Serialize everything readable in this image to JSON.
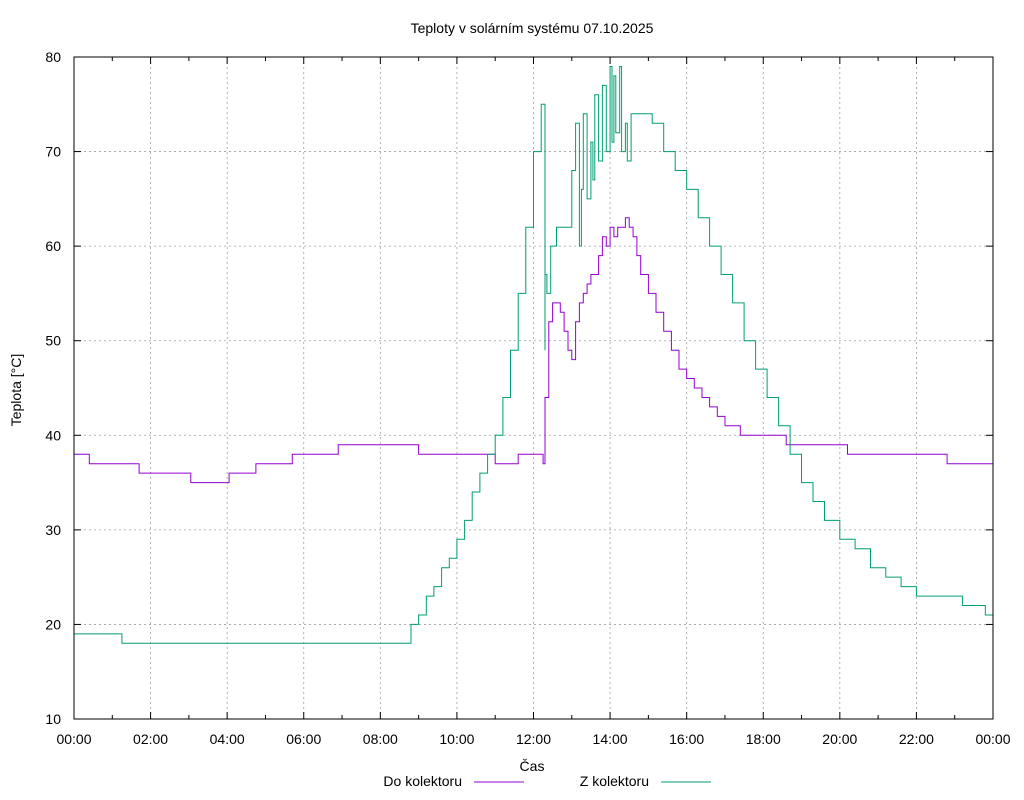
{
  "chart_data": {
    "type": "line",
    "title": "Teploty v solárním systému 07.10.2025",
    "xlabel": "Čas",
    "ylabel": "Teplota [°C]",
    "ylim": [
      10,
      80
    ],
    "xlim": [
      0,
      24
    ],
    "grid": true,
    "legend_position": "bottom-center",
    "y_ticks": [
      10,
      20,
      30,
      40,
      50,
      60,
      70,
      80
    ],
    "x_ticks": [
      0,
      2,
      4,
      6,
      8,
      10,
      12,
      14,
      16,
      18,
      20,
      22,
      24
    ],
    "x_tick_labels": [
      "00:00",
      "02:00",
      "04:00",
      "06:00",
      "08:00",
      "10:00",
      "12:00",
      "14:00",
      "16:00",
      "18:00",
      "20:00",
      "22:00",
      "00:00"
    ],
    "series": [
      {
        "name": "Do kolektoru",
        "color": "#9400d3",
        "x": [
          0,
          0.4,
          0.4,
          0.7,
          0.8,
          1.7,
          1.7,
          3.05,
          3.05,
          4.05,
          4.05,
          4.75,
          4.75,
          5.7,
          5.7,
          6.9,
          6.9,
          9.0,
          9.0,
          10.6,
          11.0,
          11.6,
          11.6,
          12.25,
          12.25,
          12.3,
          12.4,
          12.5,
          12.7,
          12.8,
          12.9,
          13.0,
          13.1,
          13.2,
          13.3,
          13.4,
          13.5,
          13.6,
          13.7,
          13.8,
          13.9,
          14.0,
          14.1,
          14.2,
          14.3,
          14.4,
          14.5,
          14.6,
          14.7,
          14.8,
          15.0,
          15.2,
          15.4,
          15.6,
          15.8,
          16.0,
          16.2,
          16.4,
          16.6,
          16.8,
          17.0,
          17.2,
          17.4,
          17.6,
          17.8,
          18.2,
          18.6,
          19.0,
          19.5,
          19.5,
          20.2,
          22.8,
          22.8,
          23.3,
          23.3,
          24.0
        ],
        "values": [
          38,
          38,
          37,
          37,
          37,
          37,
          36,
          36,
          35,
          35,
          36,
          36,
          37,
          37,
          38,
          38,
          39,
          39,
          38,
          38,
          37,
          37,
          38,
          38,
          37,
          44,
          52,
          54,
          53,
          51,
          49,
          48,
          52,
          54,
          55,
          56,
          57,
          57,
          59,
          61,
          60,
          62,
          61,
          62,
          62,
          63,
          62,
          61,
          59,
          57,
          55,
          53,
          51,
          49,
          47,
          46,
          45,
          44,
          43,
          42,
          41,
          41,
          40,
          40,
          40,
          40,
          39,
          39,
          39,
          39,
          38,
          38,
          37,
          37,
          37,
          37
        ]
      },
      {
        "name": "Z kolektoru",
        "color": "#009e73",
        "x": [
          0,
          1.25,
          1.25,
          8.6,
          8.8,
          9.0,
          9.2,
          9.4,
          9.6,
          9.8,
          10.0,
          10.2,
          10.4,
          10.6,
          10.8,
          11.0,
          11.2,
          11.4,
          11.6,
          11.8,
          12.0,
          12.2,
          12.3,
          12.3,
          12.35,
          12.45,
          12.6,
          12.8,
          13.0,
          13.1,
          13.2,
          13.25,
          13.3,
          13.4,
          13.5,
          13.55,
          13.6,
          13.7,
          13.8,
          13.9,
          14.0,
          14.05,
          14.1,
          14.15,
          14.25,
          14.3,
          14.4,
          14.45,
          14.55,
          14.6,
          14.8,
          15.0,
          15.1,
          15.4,
          15.7,
          16.0,
          16.3,
          16.6,
          16.9,
          17.2,
          17.5,
          17.8,
          18.1,
          18.4,
          18.7,
          19.0,
          19.3,
          19.6,
          20.0,
          20.4,
          20.8,
          21.2,
          21.6,
          22.0,
          22.4,
          22.8,
          23.2,
          23.6,
          23.8,
          24.0
        ],
        "values": [
          19,
          19,
          18,
          18,
          20,
          21,
          23,
          24,
          26,
          27,
          29,
          31,
          34,
          36,
          38,
          40,
          44,
          49,
          55,
          62,
          70,
          75,
          49,
          57,
          55,
          60,
          62,
          62,
          68,
          73,
          60,
          66,
          74,
          65,
          71,
          67,
          76,
          69,
          77,
          70,
          79,
          71,
          78,
          72,
          79,
          70,
          73,
          69,
          74,
          74,
          74,
          74,
          73,
          70,
          68,
          66,
          63,
          60,
          57,
          54,
          50,
          47,
          44,
          41,
          38,
          35,
          33,
          31,
          29,
          28,
          26,
          25,
          24,
          23,
          23,
          23,
          22,
          22,
          21,
          21
        ]
      }
    ]
  }
}
